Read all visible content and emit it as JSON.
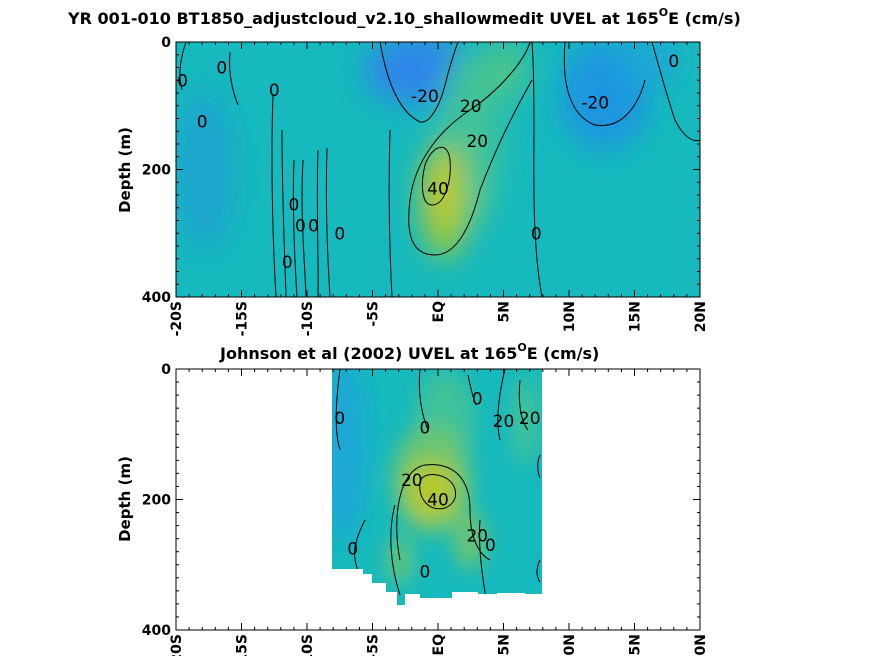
{
  "chart_data": [
    {
      "type": "heatmap",
      "title": "YR 001-010 BT1850_adjustcloud_v2.10_shallowmedit UVEL at 165",
      "title_degree": "O",
      "title_tail": "E (cm/s)",
      "xlabel": "",
      "ylabel": "Depth (m)",
      "xlim": [
        -20,
        20
      ],
      "ylim": [
        0,
        400
      ],
      "y_reversed": true,
      "xtick_values": [
        -20,
        -15,
        -10,
        -5,
        0,
        5,
        10,
        15,
        20
      ],
      "xticklabels": [
        "-20S",
        "-15S",
        "-10S",
        "-5S",
        "EQ",
        "5N",
        "10N",
        "15N",
        "20N"
      ],
      "ytick_values": [
        0,
        200,
        400
      ],
      "yticklabels": [
        "0",
        "200",
        "400"
      ],
      "colormap": [
        "#2f86e8",
        "#1fa8d6",
        "#16b9bd",
        "#3fc29a",
        "#9cc93a",
        "#cfc92a"
      ],
      "data_extent_lon": [
        -20,
        20
      ],
      "features": [
        {
          "name": "equatorial undercurrent core",
          "lat": 0,
          "depth": 190,
          "u": 45
        },
        {
          "name": "undercurrent upper limb",
          "lat": 2.5,
          "depth": 100,
          "u": 25
        },
        {
          "name": "south equatorial current",
          "lat": -3,
          "depth": 40,
          "u": -25
        },
        {
          "name": "north equatorial current",
          "lat": 11,
          "depth": 90,
          "u": -22
        }
      ],
      "contour_labels": [
        {
          "text": "0",
          "lat": -19.5,
          "depth": 60
        },
        {
          "text": "0",
          "lat": -16.5,
          "depth": 40
        },
        {
          "text": "0",
          "lat": -12.5,
          "depth": 75
        },
        {
          "text": "0",
          "lat": -18,
          "depth": 125
        },
        {
          "text": "-20",
          "lat": -1,
          "depth": 85
        },
        {
          "text": "20",
          "lat": 2.5,
          "depth": 100
        },
        {
          "text": "20",
          "lat": 3,
          "depth": 155
        },
        {
          "text": "40",
          "lat": 0,
          "depth": 230
        },
        {
          "text": "0",
          "lat": -11,
          "depth": 255
        },
        {
          "text": "0",
          "lat": -10.5,
          "depth": 288
        },
        {
          "text": "0",
          "lat": -9.5,
          "depth": 288
        },
        {
          "text": "0",
          "lat": -7.5,
          "depth": 300
        },
        {
          "text": "0",
          "lat": -11.5,
          "depth": 345
        },
        {
          "text": "0",
          "lat": 7.5,
          "depth": 300
        },
        {
          "text": "-20",
          "lat": 12,
          "depth": 95
        },
        {
          "text": "0",
          "lat": 18,
          "depth": 30
        }
      ]
    },
    {
      "type": "heatmap",
      "title": "Johnson et al (2002) UVEL at 165",
      "title_degree": "O",
      "title_tail": "E (cm/s)",
      "xlabel": "",
      "ylabel": "Depth (m)",
      "xlim": [
        -20,
        20
      ],
      "ylim": [
        0,
        400
      ],
      "y_reversed": true,
      "xtick_values": [
        -20,
        -15,
        -10,
        -5,
        0,
        5,
        10,
        15,
        20
      ],
      "xticklabels": [
        "-20S",
        "-15S",
        "-10S",
        "-5S",
        "EQ",
        "5N",
        "10N",
        "15N",
        "20N"
      ],
      "ytick_values": [
        0,
        200,
        400
      ],
      "yticklabels": [
        "0",
        "200",
        "400"
      ],
      "data_extent_lon": [
        -8,
        8
      ],
      "features": [
        {
          "name": "equatorial undercurrent core",
          "lat": 0,
          "depth": 190,
          "u": 45
        },
        {
          "name": "westward surface flow",
          "lat": -6,
          "depth": 60,
          "u": -10
        }
      ],
      "contour_labels": [
        {
          "text": "0",
          "lat": -7.5,
          "depth": 75
        },
        {
          "text": "0",
          "lat": -1,
          "depth": 90
        },
        {
          "text": "0",
          "lat": 3,
          "depth": 45
        },
        {
          "text": "20",
          "lat": 5,
          "depth": 80
        },
        {
          "text": "20",
          "lat": 7,
          "depth": 75
        },
        {
          "text": "20",
          "lat": -2,
          "depth": 170
        },
        {
          "text": "40",
          "lat": 0,
          "depth": 200
        },
        {
          "text": "20",
          "lat": 3,
          "depth": 255
        },
        {
          "text": "0",
          "lat": 4,
          "depth": 270
        },
        {
          "text": "0",
          "lat": -6.5,
          "depth": 275
        },
        {
          "text": "0",
          "lat": -1,
          "depth": 310
        }
      ]
    }
  ]
}
